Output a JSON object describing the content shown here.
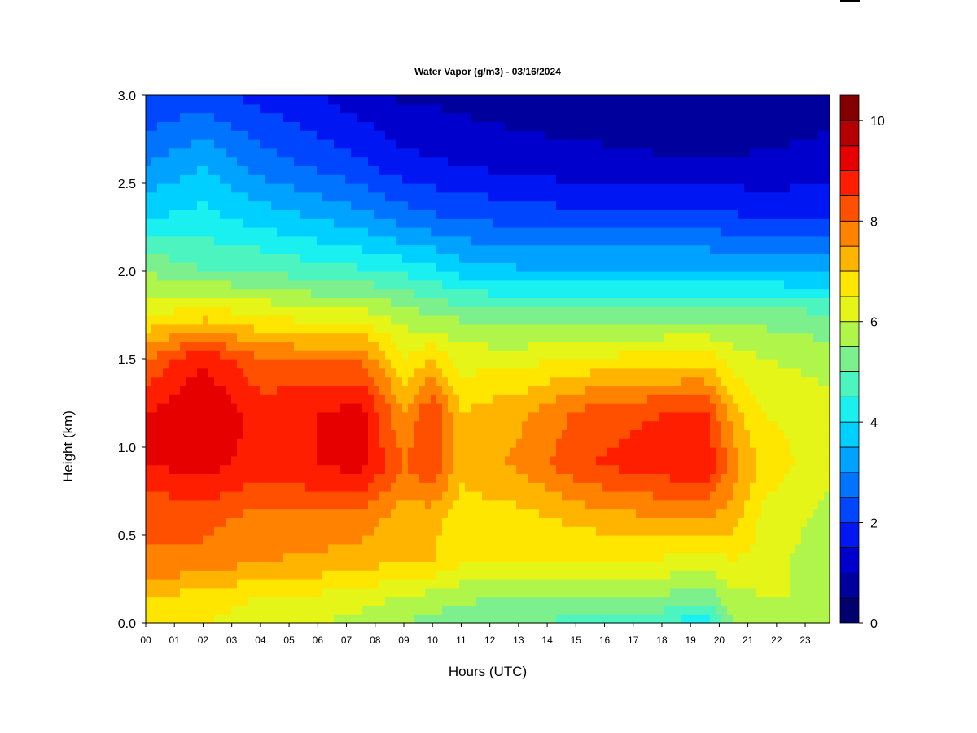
{
  "chart_data": {
    "type": "heatmap",
    "title": "Water Vapor (g/m3) - 03/16/2024",
    "xlabel": "Hours (UTC)",
    "ylabel": "Height (km)",
    "xlim": [
      0,
      23.85
    ],
    "ylim": [
      0,
      3.0
    ],
    "x_tick_labels": [
      "00",
      "01",
      "02",
      "03",
      "04",
      "05",
      "06",
      "07",
      "08",
      "09",
      "10",
      "11",
      "12",
      "13",
      "14",
      "15",
      "16",
      "17",
      "18",
      "19",
      "20",
      "21",
      "22",
      "23"
    ],
    "y_tick_labels": [
      "0.0",
      "0.5",
      "1.0",
      "1.5",
      "2.0",
      "2.5",
      "3.0"
    ],
    "y_ticks": [
      0,
      0.5,
      1.0,
      1.5,
      2.0,
      2.5,
      3.0
    ],
    "colorbar": {
      "min": 0,
      "max": 10.5,
      "step": 0.5,
      "tick_values": [
        0,
        2,
        4,
        6,
        8,
        10
      ],
      "tick_labels": [
        "0",
        "2",
        "4",
        "6",
        "8",
        "10"
      ],
      "colors": [
        "#00006e",
        "#00009c",
        "#0000cd",
        "#0016f2",
        "#0046ff",
        "#0074ff",
        "#00a2ff",
        "#00d0ff",
        "#1af0f0",
        "#4cf5c0",
        "#7cf08c",
        "#b0f54a",
        "#e4f517",
        "#ffe600",
        "#ffb400",
        "#ff8200",
        "#ff5000",
        "#ff1e00",
        "#e60000",
        "#b40000",
        "#820000"
      ]
    },
    "profile_times_utc": [
      0,
      2,
      4,
      6,
      7.5,
      9,
      10,
      11,
      13,
      15.5,
      18,
      19.5,
      20.5,
      21.5,
      23.85
    ],
    "profile_heights_km": [
      0.0,
      0.15,
      0.35,
      0.6,
      0.9,
      1.2,
      1.5,
      1.75,
      2.0,
      2.3,
      2.6,
      3.0
    ],
    "values_g_m3": [
      [
        6.8,
        7.0,
        8.0,
        8.0,
        9.0,
        9.0,
        8.0,
        6.5,
        5.5,
        4.0,
        3.0,
        2.0
      ],
      [
        6.5,
        6.8,
        7.8,
        8.2,
        9.2,
        9.5,
        9.0,
        6.8,
        5.0,
        4.2,
        3.5,
        2.2
      ],
      [
        6.2,
        6.5,
        7.5,
        7.8,
        8.8,
        8.8,
        8.0,
        6.5,
        5.0,
        3.8,
        2.8,
        1.8
      ],
      [
        6.0,
        6.4,
        7.4,
        7.9,
        9.0,
        9.0,
        8.0,
        6.2,
        4.7,
        3.5,
        2.4,
        1.5
      ],
      [
        5.8,
        6.2,
        7.2,
        7.8,
        9.2,
        9.2,
        8.0,
        6.2,
        4.6,
        3.2,
        2.1,
        1.2
      ],
      [
        5.5,
        6.0,
        7.0,
        7.2,
        8.0,
        7.5,
        6.5,
        5.8,
        4.4,
        2.8,
        1.7,
        0.9
      ],
      [
        5.3,
        5.8,
        7.0,
        7.2,
        8.5,
        8.5,
        7.0,
        5.5,
        4.2,
        2.6,
        1.6,
        0.9
      ],
      [
        5.2,
        5.6,
        6.6,
        6.7,
        7.2,
        7.0,
        6.3,
        5.4,
        3.8,
        2.5,
        1.5,
        0.8
      ],
      [
        5.0,
        5.5,
        6.5,
        6.8,
        7.6,
        7.4,
        6.3,
        5.2,
        3.6,
        2.3,
        1.3,
        0.7
      ],
      [
        4.8,
        5.5,
        6.5,
        7.2,
        8.5,
        8.2,
        6.6,
        5.2,
        3.6,
        2.2,
        1.2,
        0.6
      ],
      [
        4.6,
        5.4,
        6.4,
        7.5,
        8.8,
        8.5,
        6.7,
        5.3,
        3.6,
        2.2,
        1.1,
        0.5
      ],
      [
        4.0,
        5.2,
        6.2,
        7.5,
        9.0,
        8.6,
        6.8,
        5.3,
        3.6,
        2.2,
        1.1,
        0.5
      ],
      [
        5.5,
        5.8,
        6.5,
        7.2,
        7.8,
        7.2,
        6.3,
        5.3,
        3.5,
        2.1,
        1.1,
        0.5
      ],
      [
        5.8,
        6.0,
        6.3,
        6.4,
        6.8,
        6.5,
        6.0,
        5.3,
        3.5,
        2.0,
        1.1,
        0.6
      ],
      [
        6.0,
        6.0,
        5.6,
        5.8,
        6.2,
        6.2,
        5.8,
        5.1,
        3.4,
        2.0,
        1.2,
        0.8
      ]
    ],
    "legend": "colorbar at right",
    "grid": false
  }
}
